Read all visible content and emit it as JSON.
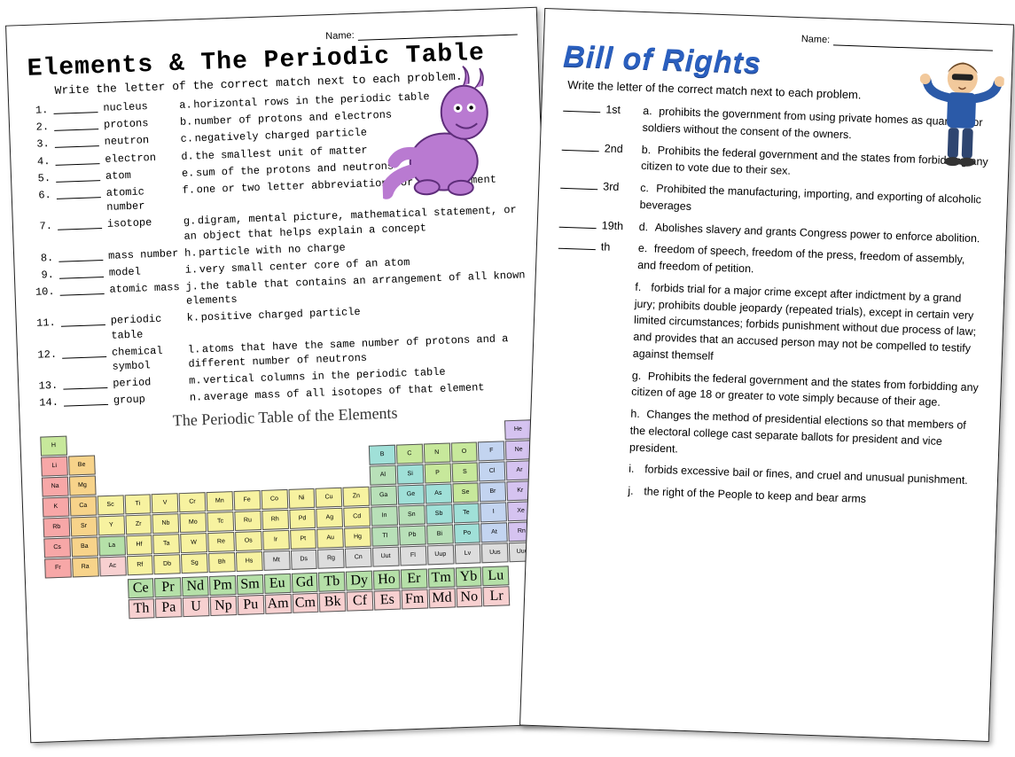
{
  "left": {
    "name_label": "Name:",
    "title": "Elements & The Periodic Table",
    "instruction": "Write the letter of the correct match next to each problem.",
    "terms": [
      {
        "n": "1.",
        "term": "nucleus"
      },
      {
        "n": "2.",
        "term": "protons"
      },
      {
        "n": "3.",
        "term": "neutron"
      },
      {
        "n": "4.",
        "term": "electron"
      },
      {
        "n": "5.",
        "term": "atom"
      },
      {
        "n": "6.",
        "term": "atomic number"
      },
      {
        "n": "7.",
        "term": "isotope"
      },
      {
        "n": "8.",
        "term": "mass number"
      },
      {
        "n": "9.",
        "term": "model"
      },
      {
        "n": "10.",
        "term": "atomic mass"
      },
      {
        "n": "11.",
        "term": "periodic table"
      },
      {
        "n": "12.",
        "term": "chemical symbol"
      },
      {
        "n": "13.",
        "term": "period"
      },
      {
        "n": "14.",
        "term": "group"
      }
    ],
    "defs": [
      {
        "l": "a.",
        "t": "horizontal rows in the periodic table"
      },
      {
        "l": "b.",
        "t": "number of protons and electrons"
      },
      {
        "l": "c.",
        "t": "negatively charged particle"
      },
      {
        "l": "d.",
        "t": "the smallest unit of matter"
      },
      {
        "l": "e.",
        "t": "sum of the protons and neutrons"
      },
      {
        "l": "f.",
        "t": "one or two letter abbreviation for each element"
      },
      {
        "l": "g.",
        "t": "digram, mental picture, mathematical statement, or an object that helps explain a concept"
      },
      {
        "l": "h.",
        "t": "particle with no charge"
      },
      {
        "l": "i.",
        "t": "very small center core of an atom"
      },
      {
        "l": "j.",
        "t": "the table that contains an arrangement of all known elements"
      },
      {
        "l": "k.",
        "t": "positive charged particle"
      },
      {
        "l": "l.",
        "t": "atoms that have the same number of protons and a different number of neutrons"
      },
      {
        "l": "m.",
        "t": "vertical columns in the periodic table"
      },
      {
        "l": "n.",
        "t": "average mass of all isotopes of that element"
      }
    ],
    "pt_title": "The Periodic Table of the Elements",
    "pt_colors": {
      "alkali": "#f7a7a7",
      "alkaline": "#f7d38a",
      "transition": "#f7f2a0",
      "post": "#b8e0b8",
      "metalloid": "#a0e0d8",
      "nonmetal": "#c7e89b",
      "halogen": "#c3d4f0",
      "noble": "#d5c3f0",
      "lan": "#b5e0a8",
      "act": "#f7d0d0",
      "unknown": "#dddddd"
    },
    "pt": [
      [
        [
          "H",
          "nonmetal"
        ],
        null,
        null,
        null,
        null,
        null,
        null,
        null,
        null,
        null,
        null,
        null,
        null,
        null,
        null,
        null,
        null,
        [
          "He",
          "noble"
        ]
      ],
      [
        [
          "Li",
          "alkali"
        ],
        [
          "Be",
          "alkaline"
        ],
        null,
        null,
        null,
        null,
        null,
        null,
        null,
        null,
        null,
        null,
        [
          "B",
          "metalloid"
        ],
        [
          "C",
          "nonmetal"
        ],
        [
          "N",
          "nonmetal"
        ],
        [
          "O",
          "nonmetal"
        ],
        [
          "F",
          "halogen"
        ],
        [
          "Ne",
          "noble"
        ]
      ],
      [
        [
          "Na",
          "alkali"
        ],
        [
          "Mg",
          "alkaline"
        ],
        null,
        null,
        null,
        null,
        null,
        null,
        null,
        null,
        null,
        null,
        [
          "Al",
          "post"
        ],
        [
          "Si",
          "metalloid"
        ],
        [
          "P",
          "nonmetal"
        ],
        [
          "S",
          "nonmetal"
        ],
        [
          "Cl",
          "halogen"
        ],
        [
          "Ar",
          "noble"
        ]
      ],
      [
        [
          "K",
          "alkali"
        ],
        [
          "Ca",
          "alkaline"
        ],
        [
          "Sc",
          "transition"
        ],
        [
          "Ti",
          "transition"
        ],
        [
          "V",
          "transition"
        ],
        [
          "Cr",
          "transition"
        ],
        [
          "Mn",
          "transition"
        ],
        [
          "Fe",
          "transition"
        ],
        [
          "Co",
          "transition"
        ],
        [
          "Ni",
          "transition"
        ],
        [
          "Cu",
          "transition"
        ],
        [
          "Zn",
          "transition"
        ],
        [
          "Ga",
          "post"
        ],
        [
          "Ge",
          "metalloid"
        ],
        [
          "As",
          "metalloid"
        ],
        [
          "Se",
          "nonmetal"
        ],
        [
          "Br",
          "halogen"
        ],
        [
          "Kr",
          "noble"
        ]
      ],
      [
        [
          "Rb",
          "alkali"
        ],
        [
          "Sr",
          "alkaline"
        ],
        [
          "Y",
          "transition"
        ],
        [
          "Zr",
          "transition"
        ],
        [
          "Nb",
          "transition"
        ],
        [
          "Mo",
          "transition"
        ],
        [
          "Tc",
          "transition"
        ],
        [
          "Ru",
          "transition"
        ],
        [
          "Rh",
          "transition"
        ],
        [
          "Pd",
          "transition"
        ],
        [
          "Ag",
          "transition"
        ],
        [
          "Cd",
          "transition"
        ],
        [
          "In",
          "post"
        ],
        [
          "Sn",
          "post"
        ],
        [
          "Sb",
          "metalloid"
        ],
        [
          "Te",
          "metalloid"
        ],
        [
          "I",
          "halogen"
        ],
        [
          "Xe",
          "noble"
        ]
      ],
      [
        [
          "Cs",
          "alkali"
        ],
        [
          "Ba",
          "alkaline"
        ],
        [
          "La",
          "lan"
        ],
        [
          "Hf",
          "transition"
        ],
        [
          "Ta",
          "transition"
        ],
        [
          "W",
          "transition"
        ],
        [
          "Re",
          "transition"
        ],
        [
          "Os",
          "transition"
        ],
        [
          "Ir",
          "transition"
        ],
        [
          "Pt",
          "transition"
        ],
        [
          "Au",
          "transition"
        ],
        [
          "Hg",
          "transition"
        ],
        [
          "Tl",
          "post"
        ],
        [
          "Pb",
          "post"
        ],
        [
          "Bi",
          "post"
        ],
        [
          "Po",
          "metalloid"
        ],
        [
          "At",
          "halogen"
        ],
        [
          "Rn",
          "noble"
        ]
      ],
      [
        [
          "Fr",
          "alkali"
        ],
        [
          "Ra",
          "alkaline"
        ],
        [
          "Ac",
          "act"
        ],
        [
          "Rf",
          "transition"
        ],
        [
          "Db",
          "transition"
        ],
        [
          "Sg",
          "transition"
        ],
        [
          "Bh",
          "transition"
        ],
        [
          "Hs",
          "transition"
        ],
        [
          "Mt",
          "unknown"
        ],
        [
          "Ds",
          "unknown"
        ],
        [
          "Rg",
          "unknown"
        ],
        [
          "Cn",
          "unknown"
        ],
        [
          "Uut",
          "unknown"
        ],
        [
          "Fl",
          "unknown"
        ],
        [
          "Uup",
          "unknown"
        ],
        [
          "Lv",
          "unknown"
        ],
        [
          "Uus",
          "unknown"
        ],
        [
          "Uuo",
          "unknown"
        ]
      ]
    ],
    "lan_row": [
      null,
      null,
      null,
      [
        "Ce",
        "lan"
      ],
      [
        "Pr",
        "lan"
      ],
      [
        "Nd",
        "lan"
      ],
      [
        "Pm",
        "lan"
      ],
      [
        "Sm",
        "lan"
      ],
      [
        "Eu",
        "lan"
      ],
      [
        "Gd",
        "lan"
      ],
      [
        "Tb",
        "lan"
      ],
      [
        "Dy",
        "lan"
      ],
      [
        "Ho",
        "lan"
      ],
      [
        "Er",
        "lan"
      ],
      [
        "Tm",
        "lan"
      ],
      [
        "Yb",
        "lan"
      ],
      [
        "Lu",
        "lan"
      ],
      null
    ],
    "act_row": [
      null,
      null,
      null,
      [
        "Th",
        "act"
      ],
      [
        "Pa",
        "act"
      ],
      [
        "U",
        "act"
      ],
      [
        "Np",
        "act"
      ],
      [
        "Pu",
        "act"
      ],
      [
        "Am",
        "act"
      ],
      [
        "Cm",
        "act"
      ],
      [
        "Bk",
        "act"
      ],
      [
        "Cf",
        "act"
      ],
      [
        "Es",
        "act"
      ],
      [
        "Fm",
        "act"
      ],
      [
        "Md",
        "act"
      ],
      [
        "No",
        "act"
      ],
      [
        "Lr",
        "act"
      ],
      null
    ]
  },
  "right": {
    "name_label": "Name:",
    "title": "Bill of Rights",
    "instruction": "Write the letter of the correct match next to each problem.",
    "terms": [
      "1st",
      "2nd",
      "3rd",
      "19th",
      "th"
    ],
    "defs": [
      {
        "l": "a.",
        "t": "prohibits the government from using private homes as quarters for soldiers without the consent of the owners."
      },
      {
        "l": "b.",
        "t": "Prohibits the federal government and the states from forbidding any citizen to vote due to their sex."
      },
      {
        "l": "c.",
        "t": "Prohibited the manufacturing, importing, and exporting of alcoholic beverages"
      },
      {
        "l": "d.",
        "t": "Abolishes slavery and grants Congress power to enforce abolition."
      },
      {
        "l": "e.",
        "t": "freedom of speech, freedom of the press, freedom of assembly, and freedom of petition."
      },
      {
        "l": "f.",
        "t": "forbids trial for a major crime except after indictment by a grand jury; prohibits double jeopardy (repeated trials), except in certain very limited circumstances; forbids punishment without due process of law; and provides that an accused person may not be compelled to testify against themself"
      },
      {
        "l": "g.",
        "t": "Prohibits the federal government and the states from forbidding any citizen of age 18 or greater to vote simply because of their age."
      },
      {
        "l": "h.",
        "t": "Changes the method of presidential elections so that members of the electoral college cast separate ballots for president and vice president."
      },
      {
        "l": "i.",
        "t": "forbids excessive bail or fines, and cruel and unusual punishment."
      },
      {
        "l": "j.",
        "t": "the right of the People to keep and bear arms"
      }
    ]
  },
  "mascot_colors": {
    "dino_body": "#b97ad1",
    "dino_stroke": "#5e2d7a",
    "guy_shirt": "#2b5aa8",
    "guy_pants": "#2e4570",
    "guy_skin": "#f2c99c",
    "guy_hair": "#6b4a2a"
  }
}
